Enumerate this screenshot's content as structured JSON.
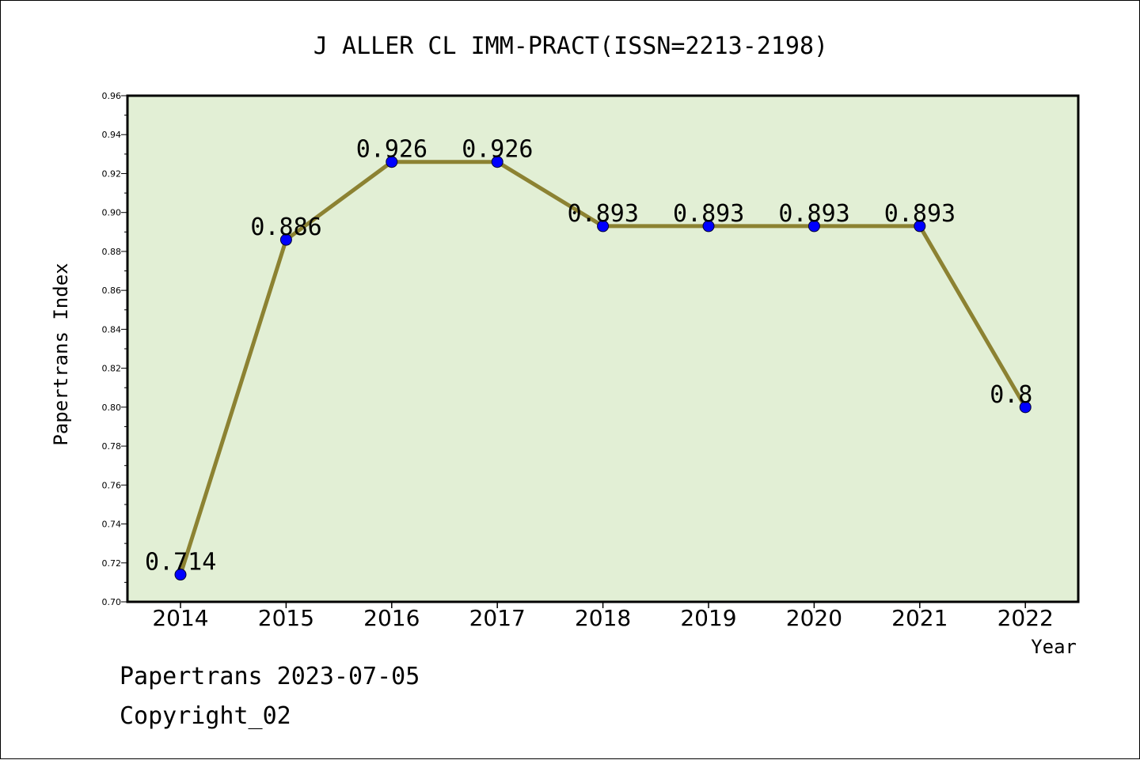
{
  "chart_data": {
    "type": "line",
    "title": "J ALLER CL IMM-PRACT(ISSN=2213-2198)",
    "xlabel": "Year",
    "ylabel": "Papertrans Index",
    "categories": [
      "2014",
      "2015",
      "2016",
      "2017",
      "2018",
      "2019",
      "2020",
      "2021",
      "2022"
    ],
    "series": [
      {
        "values": [
          0.714,
          0.886,
          0.926,
          0.926,
          0.893,
          0.893,
          0.893,
          0.893,
          0.8
        ],
        "data_labels": [
          "0.714",
          "0.886",
          "0.926",
          "0.926",
          "0.893",
          "0.893",
          "0.893",
          "0.893",
          "0.8"
        ]
      }
    ],
    "ylim": [
      0.7,
      0.96
    ],
    "yticks": [
      "0.70",
      "0.72",
      "0.74",
      "0.76",
      "0.78",
      "0.80",
      "0.82",
      "0.84",
      "0.86",
      "0.88",
      "0.90",
      "0.92",
      "0.94",
      "0.96"
    ],
    "grid": false,
    "legend": "none",
    "colors": {
      "plot_background": "#e2efd5",
      "line": "#8c8232",
      "marker": "#0000ff"
    }
  },
  "footer": {
    "line1": "Papertrans 2023-07-05",
    "line2": "Copyright_02"
  }
}
